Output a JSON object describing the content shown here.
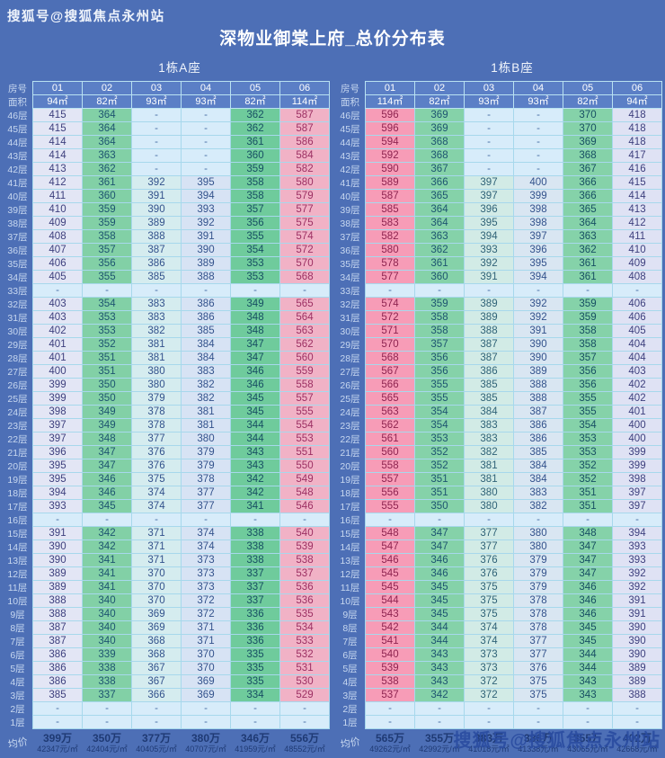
{
  "page": {
    "watermark_top": "搜狐号@搜狐焦点永州站",
    "watermark_bottom": "搜狐号@搜狐焦点永州站",
    "title": "深物业御棠上府_总价分布表"
  },
  "colors": {
    "background": "#4d6fb6",
    "header_bg": "#5b7fc6",
    "cell_border": "#a7d8ec",
    "dash_bg": "#d7ecfa",
    "dash_text": "#4a6fa5",
    "avg_text": "#1f3a74",
    "floor_label_text": "#c8d8f0",
    "watermark_bottom_color": "#2b4da1"
  },
  "shared": {
    "room_label": "房号",
    "area_label": "面积",
    "avg_label": "均价",
    "floors": [
      "46层",
      "45层",
      "44层",
      "43层",
      "42层",
      "41层",
      "40层",
      "39层",
      "38层",
      "37层",
      "36层",
      "35层",
      "34层",
      "33层",
      "32层",
      "31层",
      "30层",
      "29层",
      "28层",
      "27层",
      "26层",
      "25层",
      "24层",
      "23层",
      "22层",
      "21层",
      "20层",
      "19层",
      "18层",
      "17层",
      "16层",
      "15层",
      "14层",
      "13层",
      "12层",
      "11层",
      "10层",
      "9层",
      "8层",
      "7层",
      "6层",
      "5层",
      "4层",
      "3层",
      "2层",
      "1层"
    ]
  },
  "tables": [
    {
      "name": "1栋A座",
      "rooms": [
        "01",
        "02",
        "03",
        "04",
        "05",
        "06"
      ],
      "areas": [
        "94㎡",
        "82㎡",
        "93㎡",
        "93㎡",
        "82㎡",
        "114㎡"
      ],
      "col_bg": [
        "#e3e6f5",
        "#82d0a6",
        "#d5ecef",
        "#d7e3f4",
        "#6fcb9c",
        "#f1b2c6"
      ],
      "col_text": [
        "#3d3f7d",
        "#1d5470",
        "#33528c",
        "#33528c",
        "#174f63",
        "#9c3063"
      ],
      "values": [
        [
          "415",
          "364",
          "-",
          "-",
          "362",
          "587"
        ],
        [
          "415",
          "364",
          "-",
          "-",
          "362",
          "587"
        ],
        [
          "414",
          "364",
          "-",
          "-",
          "361",
          "586"
        ],
        [
          "414",
          "363",
          "-",
          "-",
          "360",
          "584"
        ],
        [
          "413",
          "362",
          "-",
          "-",
          "359",
          "582"
        ],
        [
          "412",
          "361",
          "392",
          "395",
          "358",
          "580"
        ],
        [
          "411",
          "360",
          "391",
          "394",
          "358",
          "579"
        ],
        [
          "410",
          "359",
          "390",
          "393",
          "357",
          "577"
        ],
        [
          "409",
          "359",
          "389",
          "392",
          "356",
          "575"
        ],
        [
          "408",
          "358",
          "388",
          "391",
          "355",
          "574"
        ],
        [
          "407",
          "357",
          "387",
          "390",
          "354",
          "572"
        ],
        [
          "406",
          "356",
          "386",
          "389",
          "353",
          "570"
        ],
        [
          "405",
          "355",
          "385",
          "388",
          "353",
          "568"
        ],
        [
          "-",
          "-",
          "-",
          "-",
          "-",
          "-"
        ],
        [
          "403",
          "354",
          "383",
          "386",
          "349",
          "565"
        ],
        [
          "403",
          "353",
          "383",
          "386",
          "348",
          "564"
        ],
        [
          "402",
          "353",
          "382",
          "385",
          "348",
          "563"
        ],
        [
          "401",
          "352",
          "381",
          "384",
          "347",
          "562"
        ],
        [
          "401",
          "351",
          "381",
          "384",
          "347",
          "560"
        ],
        [
          "400",
          "351",
          "380",
          "383",
          "346",
          "559"
        ],
        [
          "399",
          "350",
          "380",
          "382",
          "346",
          "558"
        ],
        [
          "399",
          "350",
          "379",
          "382",
          "345",
          "557"
        ],
        [
          "398",
          "349",
          "378",
          "381",
          "345",
          "555"
        ],
        [
          "397",
          "349",
          "378",
          "381",
          "344",
          "554"
        ],
        [
          "397",
          "348",
          "377",
          "380",
          "344",
          "553"
        ],
        [
          "396",
          "347",
          "376",
          "379",
          "343",
          "551"
        ],
        [
          "395",
          "347",
          "376",
          "379",
          "343",
          "550"
        ],
        [
          "395",
          "346",
          "375",
          "378",
          "342",
          "549"
        ],
        [
          "394",
          "346",
          "374",
          "377",
          "342",
          "548"
        ],
        [
          "393",
          "345",
          "374",
          "377",
          "341",
          "546"
        ],
        [
          "-",
          "-",
          "-",
          "-",
          "-",
          "-"
        ],
        [
          "391",
          "342",
          "371",
          "374",
          "338",
          "540"
        ],
        [
          "390",
          "342",
          "371",
          "374",
          "338",
          "539"
        ],
        [
          "390",
          "341",
          "371",
          "373",
          "338",
          "538"
        ],
        [
          "389",
          "341",
          "370",
          "373",
          "337",
          "537"
        ],
        [
          "389",
          "341",
          "370",
          "373",
          "337",
          "536"
        ],
        [
          "388",
          "340",
          "370",
          "372",
          "337",
          "536"
        ],
        [
          "388",
          "340",
          "369",
          "372",
          "336",
          "535"
        ],
        [
          "387",
          "340",
          "369",
          "371",
          "336",
          "534"
        ],
        [
          "387",
          "340",
          "368",
          "371",
          "336",
          "533"
        ],
        [
          "386",
          "339",
          "368",
          "370",
          "335",
          "532"
        ],
        [
          "386",
          "338",
          "367",
          "370",
          "335",
          "531"
        ],
        [
          "386",
          "338",
          "367",
          "369",
          "335",
          "530"
        ],
        [
          "385",
          "337",
          "366",
          "369",
          "334",
          "529"
        ],
        [
          "-",
          "-",
          "-",
          "-",
          "-",
          "-"
        ],
        [
          "-",
          "-",
          "-",
          "-",
          "-",
          "-"
        ]
      ],
      "avg": [
        {
          "price": "399万",
          "unit": "42347元/㎡"
        },
        {
          "price": "350万",
          "unit": "42404元/㎡"
        },
        {
          "price": "377万",
          "unit": "40405元/㎡"
        },
        {
          "price": "380万",
          "unit": "40707元/㎡"
        },
        {
          "price": "346万",
          "unit": "41959元/㎡"
        },
        {
          "price": "556万",
          "unit": "48552元/㎡"
        }
      ]
    },
    {
      "name": "1栋B座",
      "rooms": [
        "01",
        "02",
        "03",
        "04",
        "05",
        "06"
      ],
      "areas": [
        "114㎡",
        "82㎡",
        "93㎡",
        "93㎡",
        "82㎡",
        "94㎡"
      ],
      "col_bg": [
        "#f79cb7",
        "#85d2a9",
        "#d2ebe6",
        "#d9e6f2",
        "#85d2a9",
        "#dfe2f4"
      ],
      "col_text": [
        "#8e2450",
        "#1d5470",
        "#2f6277",
        "#33528c",
        "#174f63",
        "#3d3f7d"
      ],
      "values": [
        [
          "596",
          "369",
          "-",
          "-",
          "370",
          "418"
        ],
        [
          "596",
          "369",
          "-",
          "-",
          "370",
          "418"
        ],
        [
          "594",
          "368",
          "-",
          "-",
          "369",
          "418"
        ],
        [
          "592",
          "368",
          "-",
          "-",
          "368",
          "417"
        ],
        [
          "590",
          "367",
          "-",
          "-",
          "367",
          "416"
        ],
        [
          "589",
          "366",
          "397",
          "400",
          "366",
          "415"
        ],
        [
          "587",
          "365",
          "397",
          "399",
          "366",
          "414"
        ],
        [
          "585",
          "364",
          "396",
          "398",
          "365",
          "413"
        ],
        [
          "583",
          "364",
          "395",
          "398",
          "364",
          "412"
        ],
        [
          "582",
          "363",
          "394",
          "397",
          "363",
          "411"
        ],
        [
          "580",
          "362",
          "393",
          "396",
          "362",
          "410"
        ],
        [
          "578",
          "361",
          "392",
          "395",
          "361",
          "409"
        ],
        [
          "577",
          "360",
          "391",
          "394",
          "361",
          "408"
        ],
        [
          "-",
          "-",
          "-",
          "-",
          "-",
          "-"
        ],
        [
          "574",
          "359",
          "389",
          "392",
          "359",
          "406"
        ],
        [
          "572",
          "358",
          "389",
          "392",
          "359",
          "406"
        ],
        [
          "571",
          "358",
          "388",
          "391",
          "358",
          "405"
        ],
        [
          "570",
          "357",
          "387",
          "390",
          "358",
          "404"
        ],
        [
          "568",
          "356",
          "387",
          "390",
          "357",
          "404"
        ],
        [
          "567",
          "356",
          "386",
          "389",
          "356",
          "403"
        ],
        [
          "566",
          "355",
          "385",
          "388",
          "356",
          "402"
        ],
        [
          "565",
          "355",
          "385",
          "388",
          "355",
          "402"
        ],
        [
          "563",
          "354",
          "384",
          "387",
          "355",
          "401"
        ],
        [
          "562",
          "354",
          "383",
          "386",
          "354",
          "400"
        ],
        [
          "561",
          "353",
          "383",
          "386",
          "353",
          "400"
        ],
        [
          "560",
          "352",
          "382",
          "385",
          "353",
          "399"
        ],
        [
          "558",
          "352",
          "381",
          "384",
          "352",
          "399"
        ],
        [
          "557",
          "351",
          "381",
          "384",
          "352",
          "398"
        ],
        [
          "556",
          "351",
          "380",
          "383",
          "351",
          "397"
        ],
        [
          "555",
          "350",
          "380",
          "382",
          "351",
          "397"
        ],
        [
          "-",
          "-",
          "-",
          "-",
          "-",
          "-"
        ],
        [
          "548",
          "347",
          "377",
          "380",
          "348",
          "394"
        ],
        [
          "547",
          "347",
          "377",
          "380",
          "347",
          "393"
        ],
        [
          "546",
          "346",
          "376",
          "379",
          "347",
          "393"
        ],
        [
          "545",
          "346",
          "376",
          "379",
          "347",
          "392"
        ],
        [
          "545",
          "345",
          "375",
          "379",
          "346",
          "392"
        ],
        [
          "544",
          "345",
          "375",
          "378",
          "346",
          "391"
        ],
        [
          "543",
          "345",
          "375",
          "378",
          "346",
          "391"
        ],
        [
          "542",
          "344",
          "374",
          "378",
          "345",
          "390"
        ],
        [
          "541",
          "344",
          "374",
          "377",
          "345",
          "390"
        ],
        [
          "540",
          "343",
          "373",
          "377",
          "344",
          "390"
        ],
        [
          "539",
          "343",
          "373",
          "376",
          "344",
          "389"
        ],
        [
          "538",
          "343",
          "372",
          "375",
          "343",
          "389"
        ],
        [
          "537",
          "342",
          "372",
          "375",
          "343",
          "388"
        ],
        [
          "-",
          "-",
          "-",
          "-",
          "-",
          "-"
        ],
        [
          "-",
          "-",
          "-",
          "-",
          "-",
          "-"
        ]
      ],
      "avg": [
        {
          "price": "565万",
          "unit": "49262元/㎡"
        },
        {
          "price": "355万",
          "unit": "42992元/㎡"
        },
        {
          "price": "383万",
          "unit": "41018元/㎡"
        },
        {
          "price": "386万",
          "unit": "41338元/㎡"
        },
        {
          "price": "355万",
          "unit": "43065元/㎡"
        },
        {
          "price": "402万",
          "unit": "42668元/㎡"
        }
      ]
    }
  ]
}
